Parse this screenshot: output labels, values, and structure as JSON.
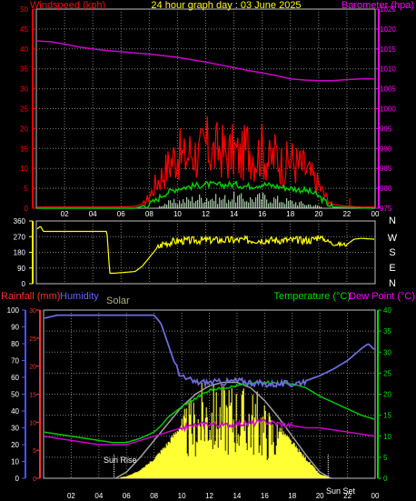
{
  "top_panel": {
    "title": "24 hour graph day : 03 June 2025",
    "left_label": "Windspeed (kph)",
    "right_label": "Barometer (hpa)"
  },
  "wind_panel": {
    "direction_labels": [
      "N",
      "W",
      "S",
      "E",
      "N"
    ]
  },
  "bottom_panel": {
    "rainfall_label": "Rainfall (mm)",
    "humidity_label": "Humidity",
    "solar_label": "Solar",
    "temperature_label": "Temperature (°C)",
    "dewpoint_label": "Dew Point (°C)",
    "sunrise_label": "Sun Rise",
    "sunset_label": "Sun Set"
  },
  "colors": {
    "wind_gust": "#ff0000",
    "wind_avg": "#00cc00",
    "wind_speed": "#c8f0c8",
    "barometer": "#cc00cc",
    "direction": "#ffff00",
    "humidity": "#6b6bdc",
    "temperature": "#00c800",
    "dewpoint": "#cc00cc",
    "solar_fill": "#ffff33",
    "solar_max": "#a0a0a0",
    "rainfall_axis": "#ff3030",
    "humidity_axis": "#5050ff",
    "temp_axis": "#00dd00",
    "dew_axis": "#ff00ff",
    "barometer_axis": "#ff00ff",
    "grid": "#808080"
  },
  "chart_data": [
    {
      "type": "line",
      "title": "24 hour graph day : 03 June 2025",
      "x_ticks": [
        "02",
        "04",
        "06",
        "08",
        "10",
        "12",
        "14",
        "16",
        "18",
        "20",
        "22",
        "00"
      ],
      "grid": true,
      "y_left": {
        "label": "Windspeed (kph)",
        "ylim": [
          0,
          50
        ],
        "ticks": [
          0,
          5,
          10,
          15,
          20,
          25,
          30,
          35,
          40,
          45,
          50
        ]
      },
      "y_right": {
        "label": "Barometer (hpa)",
        "ylim": [
          975,
          1025
        ],
        "ticks": [
          975,
          980,
          985,
          990,
          995,
          1000,
          1005,
          1010,
          1015,
          1020,
          1025
        ]
      },
      "series": [
        {
          "axis": "right",
          "x": [
            0,
            1,
            2,
            3,
            4,
            5,
            6,
            7,
            8,
            9,
            10,
            11,
            12,
            13,
            14,
            15,
            16,
            17,
            18,
            19,
            20,
            21,
            22,
            23,
            24
          ],
          "y": [
            1017,
            1016.8,
            1016.2,
            1015.5,
            1015,
            1014.6,
            1014.3,
            1014,
            1013.7,
            1013.3,
            1012.9,
            1012.3,
            1011.7,
            1011,
            1010.3,
            1009.6,
            1009,
            1008.3,
            1007.5,
            1007.2,
            1007,
            1007,
            1007.3,
            1007.5,
            1007.5
          ]
        },
        {
          "axis": "left",
          "x": [
            0,
            1,
            2,
            3,
            4,
            5,
            6,
            7,
            7.5,
            8,
            8.5,
            9,
            9.5,
            10,
            10.5,
            11,
            11.5,
            12,
            12.5,
            13,
            13.5,
            14,
            14.5,
            15,
            15.5,
            16,
            16.5,
            17,
            17.5,
            18,
            18.5,
            19,
            19.5,
            20,
            20.5,
            21,
            22,
            23,
            24
          ],
          "y": [
            0.3,
            0.3,
            0.3,
            0.3,
            0.3,
            0.3,
            0.3,
            0.5,
            1,
            4,
            9,
            12,
            16,
            19,
            17,
            20,
            18,
            22,
            19,
            21,
            18,
            20,
            17,
            22,
            18,
            20,
            16,
            19,
            14,
            17,
            15,
            14,
            11,
            8,
            4,
            1,
            0.5,
            0.3,
            0.3
          ]
        },
        {
          "axis": "left",
          "x": [
            0,
            7,
            8,
            8.5,
            9,
            10,
            11,
            12,
            13,
            14,
            15,
            16,
            17,
            18,
            19,
            19.5,
            20,
            20.5,
            21,
            24
          ],
          "y": [
            0,
            0,
            1,
            2,
            3.5,
            5,
            5.5,
            6,
            5.8,
            6,
            5.5,
            6,
            5.5,
            5,
            4.5,
            4,
            3,
            1.5,
            0.3,
            0
          ]
        },
        {
          "axis": "left",
          "x": [
            0,
            8.5,
            9,
            10,
            11,
            12,
            13,
            14,
            15,
            16,
            17,
            18,
            19,
            20,
            20.5,
            24
          ],
          "y": [
            0,
            0,
            1,
            1.5,
            2,
            2.5,
            2,
            2.5,
            2,
            2.5,
            2,
            1.5,
            1,
            0.5,
            0,
            0
          ]
        }
      ]
    },
    {
      "type": "line",
      "x_ticks": [
        "02",
        "04",
        "06",
        "08",
        "10",
        "12",
        "14",
        "16",
        "18",
        "20",
        "22",
        "00"
      ],
      "grid": true,
      "y_left": {
        "label": "",
        "ylim": [
          0,
          360
        ],
        "ticks": [
          0,
          90,
          180,
          270,
          360
        ]
      },
      "y_right": {
        "label": "",
        "categories": [
          "N",
          "W",
          "S",
          "E",
          "N"
        ]
      },
      "series": [
        {
          "x": [
            0,
            0.3,
            0.5,
            1,
            5,
            5.2,
            5.5,
            7,
            7.5,
            8,
            8.5,
            9,
            10,
            12,
            14,
            16,
            18,
            19.5,
            20,
            21,
            21.5,
            22,
            22.5,
            23,
            24
          ],
          "y": [
            310,
            330,
            300,
            300,
            300,
            60,
            60,
            70,
            100,
            150,
            200,
            230,
            245,
            250,
            250,
            250,
            250,
            250,
            270,
            230,
            225,
            225,
            255,
            260,
            255
          ]
        }
      ]
    },
    {
      "type": "area",
      "x_ticks": [
        "02",
        "04",
        "06",
        "08",
        "10",
        "12",
        "14",
        "16",
        "18",
        "20",
        "22",
        "00"
      ],
      "grid": true,
      "annotations": [
        "Sun Rise",
        "Sun Set"
      ],
      "axes": [
        {
          "label": "Rainfall (mm)",
          "ylim": [
            0,
            30
          ],
          "ticks": [
            0,
            5,
            10,
            15,
            20,
            25,
            30
          ]
        },
        {
          "label": "Humidity",
          "ylim": [
            0,
            100
          ],
          "ticks": [
            0,
            10,
            20,
            30,
            40,
            50,
            60,
            70,
            80,
            90,
            100
          ]
        },
        {
          "label": "Temperature (°C) / Dew Point (°C)",
          "ylim": [
            0,
            40
          ],
          "ticks": [
            0,
            5,
            10,
            15,
            20,
            25,
            30,
            35,
            40
          ]
        }
      ],
      "series": [
        {
          "name": "Humidity",
          "x": [
            0,
            1,
            2,
            3,
            4,
            5,
            6,
            7,
            8,
            8.5,
            9,
            9.5,
            10,
            11,
            12,
            13,
            14,
            15,
            16,
            17,
            18,
            19,
            20,
            21,
            22,
            23,
            23.5,
            24
          ],
          "y": [
            95,
            97,
            97,
            97,
            97,
            97,
            97,
            97,
            97,
            92,
            80,
            68,
            60,
            57,
            57,
            57,
            58,
            57,
            56,
            56,
            56,
            58,
            61,
            65,
            70,
            77,
            80,
            76
          ]
        },
        {
          "name": "Temperature (°C)",
          "x": [
            0,
            1,
            2,
            3,
            4,
            5,
            6,
            7,
            8,
            8.5,
            9,
            10,
            11,
            12,
            13,
            14,
            15,
            16,
            17,
            18,
            19,
            20,
            21,
            22,
            23,
            24
          ],
          "y": [
            11,
            10.5,
            10,
            9.5,
            9,
            8.5,
            8.5,
            9.5,
            11,
            12.5,
            14.5,
            17,
            19,
            21,
            21.5,
            22,
            22.5,
            23,
            22.5,
            22.5,
            21.5,
            19.5,
            18,
            16.5,
            15,
            14
          ]
        },
        {
          "name": "Dew Point (°C)",
          "x": [
            0,
            1,
            2,
            3,
            4,
            5,
            6,
            7,
            8,
            9,
            10,
            11,
            12,
            13,
            14,
            15,
            16,
            17,
            18,
            19,
            20,
            21,
            22,
            23,
            24
          ],
          "y": [
            10,
            9.5,
            9,
            8.5,
            8,
            8,
            8,
            9,
            10,
            11,
            12,
            12.5,
            13,
            12.5,
            13,
            13,
            13.5,
            13,
            12.5,
            12,
            12,
            11.5,
            11,
            10.5,
            10
          ]
        },
        {
          "name": "Solar",
          "x": [
            5,
            6,
            7,
            8,
            9,
            10,
            10.5,
            11,
            11.5,
            12,
            12.5,
            13,
            13.5,
            14,
            14.5,
            15,
            15.5,
            16,
            17,
            18,
            19,
            20,
            21
          ],
          "y": [
            0,
            0.5,
            2,
            5,
            9,
            14,
            17,
            18,
            21,
            22,
            20,
            21,
            22,
            21,
            20,
            20,
            19,
            17,
            13,
            9,
            5,
            1,
            0
          ]
        },
        {
          "name": "Solar max",
          "x": [
            5.2,
            6,
            7,
            8,
            9,
            10,
            11,
            12,
            13,
            14,
            15,
            16,
            17,
            18,
            19,
            20,
            20.8
          ],
          "y": [
            0,
            1.5,
            5,
            9,
            13,
            17,
            20,
            22,
            22.8,
            22.8,
            21.5,
            18.5,
            14.5,
            10,
            5.5,
            1.5,
            0
          ]
        }
      ],
      "sunrise_x": 5.1,
      "sunset_x": 20.6
    }
  ]
}
